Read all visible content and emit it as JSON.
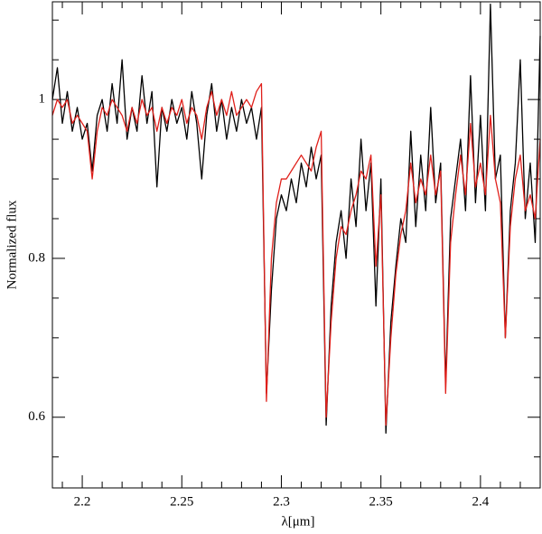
{
  "chart_data": {
    "type": "line",
    "xlabel": "λ[μm]",
    "ylabel": "Normalized flux",
    "x": [
      2.185,
      2.1875,
      2.19,
      2.1925,
      2.195,
      2.1975,
      2.2,
      2.2025,
      2.205,
      2.2075,
      2.21,
      2.2125,
      2.215,
      2.2175,
      2.22,
      2.2225,
      2.225,
      2.2275,
      2.23,
      2.2325,
      2.235,
      2.2375,
      2.24,
      2.2425,
      2.245,
      2.2475,
      2.25,
      2.2525,
      2.255,
      2.2575,
      2.26,
      2.2625,
      2.265,
      2.2675,
      2.27,
      2.2725,
      2.275,
      2.2775,
      2.28,
      2.2825,
      2.285,
      2.2875,
      2.29,
      2.2925,
      2.295,
      2.2975,
      2.3,
      2.3025,
      2.305,
      2.3075,
      2.31,
      2.3125,
      2.315,
      2.3175,
      2.32,
      2.3225,
      2.325,
      2.3275,
      2.33,
      2.3325,
      2.335,
      2.3375,
      2.34,
      2.3425,
      2.345,
      2.3475,
      2.35,
      2.3525,
      2.355,
      2.3575,
      2.36,
      2.3625,
      2.365,
      2.3675,
      2.37,
      2.3725,
      2.375,
      2.3775,
      2.38,
      2.3825,
      2.385,
      2.3875,
      2.39,
      2.3925,
      2.395,
      2.3975,
      2.4,
      2.4025,
      2.405,
      2.4075,
      2.41,
      2.4125,
      2.415,
      2.4175,
      2.42,
      2.4225,
      2.425,
      2.4275,
      2.43
    ],
    "series": [
      {
        "color": "#000000",
        "values": [
          1.0,
          1.04,
          0.97,
          1.01,
          0.96,
          0.99,
          0.95,
          0.97,
          0.91,
          0.98,
          1.0,
          0.96,
          1.02,
          0.97,
          1.05,
          0.95,
          0.99,
          0.96,
          1.03,
          0.97,
          1.01,
          0.89,
          0.99,
          0.96,
          1.0,
          0.97,
          0.99,
          0.95,
          1.01,
          0.97,
          0.9,
          0.98,
          1.02,
          0.96,
          1.0,
          0.95,
          0.99,
          0.96,
          1.0,
          0.97,
          0.99,
          0.95,
          0.99,
          0.63,
          0.76,
          0.85,
          0.88,
          0.86,
          0.9,
          0.87,
          0.92,
          0.89,
          0.94,
          0.9,
          0.93,
          0.59,
          0.74,
          0.82,
          0.86,
          0.8,
          0.9,
          0.84,
          0.95,
          0.86,
          0.92,
          0.74,
          0.9,
          0.58,
          0.72,
          0.79,
          0.85,
          0.82,
          0.96,
          0.84,
          0.93,
          0.86,
          0.99,
          0.87,
          0.92,
          0.64,
          0.85,
          0.9,
          0.95,
          0.86,
          1.03,
          0.87,
          0.98,
          0.86,
          1.12,
          0.9,
          0.93,
          0.7,
          0.86,
          0.92,
          1.05,
          0.85,
          0.92,
          0.82,
          1.08
        ]
      },
      {
        "color": "#e0201b",
        "values": [
          0.98,
          1.0,
          0.99,
          1.0,
          0.97,
          0.98,
          0.97,
          0.96,
          0.9,
          0.96,
          0.99,
          0.98,
          1.0,
          0.99,
          0.98,
          0.96,
          0.99,
          0.97,
          1.0,
          0.98,
          0.99,
          0.96,
          0.99,
          0.97,
          0.99,
          0.98,
          1.0,
          0.97,
          0.99,
          0.98,
          0.95,
          0.99,
          1.01,
          0.98,
          1.0,
          0.98,
          1.01,
          0.98,
          0.99,
          1.0,
          0.99,
          1.01,
          1.02,
          0.62,
          0.8,
          0.87,
          0.9,
          0.9,
          0.91,
          0.92,
          0.93,
          0.92,
          0.91,
          0.94,
          0.96,
          0.6,
          0.72,
          0.8,
          0.84,
          0.83,
          0.86,
          0.88,
          0.91,
          0.9,
          0.93,
          0.79,
          0.88,
          0.59,
          0.7,
          0.78,
          0.83,
          0.86,
          0.92,
          0.87,
          0.9,
          0.88,
          0.93,
          0.88,
          0.91,
          0.63,
          0.82,
          0.88,
          0.93,
          0.88,
          0.97,
          0.89,
          0.92,
          0.88,
          0.98,
          0.9,
          0.87,
          0.7,
          0.84,
          0.9,
          0.93,
          0.86,
          0.88,
          0.85,
          0.95
        ]
      }
    ],
    "xlim": [
      2.185,
      2.43
    ],
    "ylim": [
      0.511,
      1.123
    ],
    "xticks": [
      2.2,
      2.25,
      2.3,
      2.35,
      2.4
    ],
    "yticks": [
      0.6,
      0.8,
      1
    ],
    "xticks_minor": [
      2.19,
      2.21,
      2.22,
      2.23,
      2.24,
      2.26,
      2.27,
      2.28,
      2.29,
      2.31,
      2.32,
      2.33,
      2.34,
      2.36,
      2.37,
      2.38,
      2.39,
      2.41,
      2.42,
      2.43
    ],
    "yticks_minor": [
      0.55,
      0.65,
      0.7,
      0.75,
      0.85,
      0.9,
      0.95,
      1.05,
      1.1
    ]
  }
}
